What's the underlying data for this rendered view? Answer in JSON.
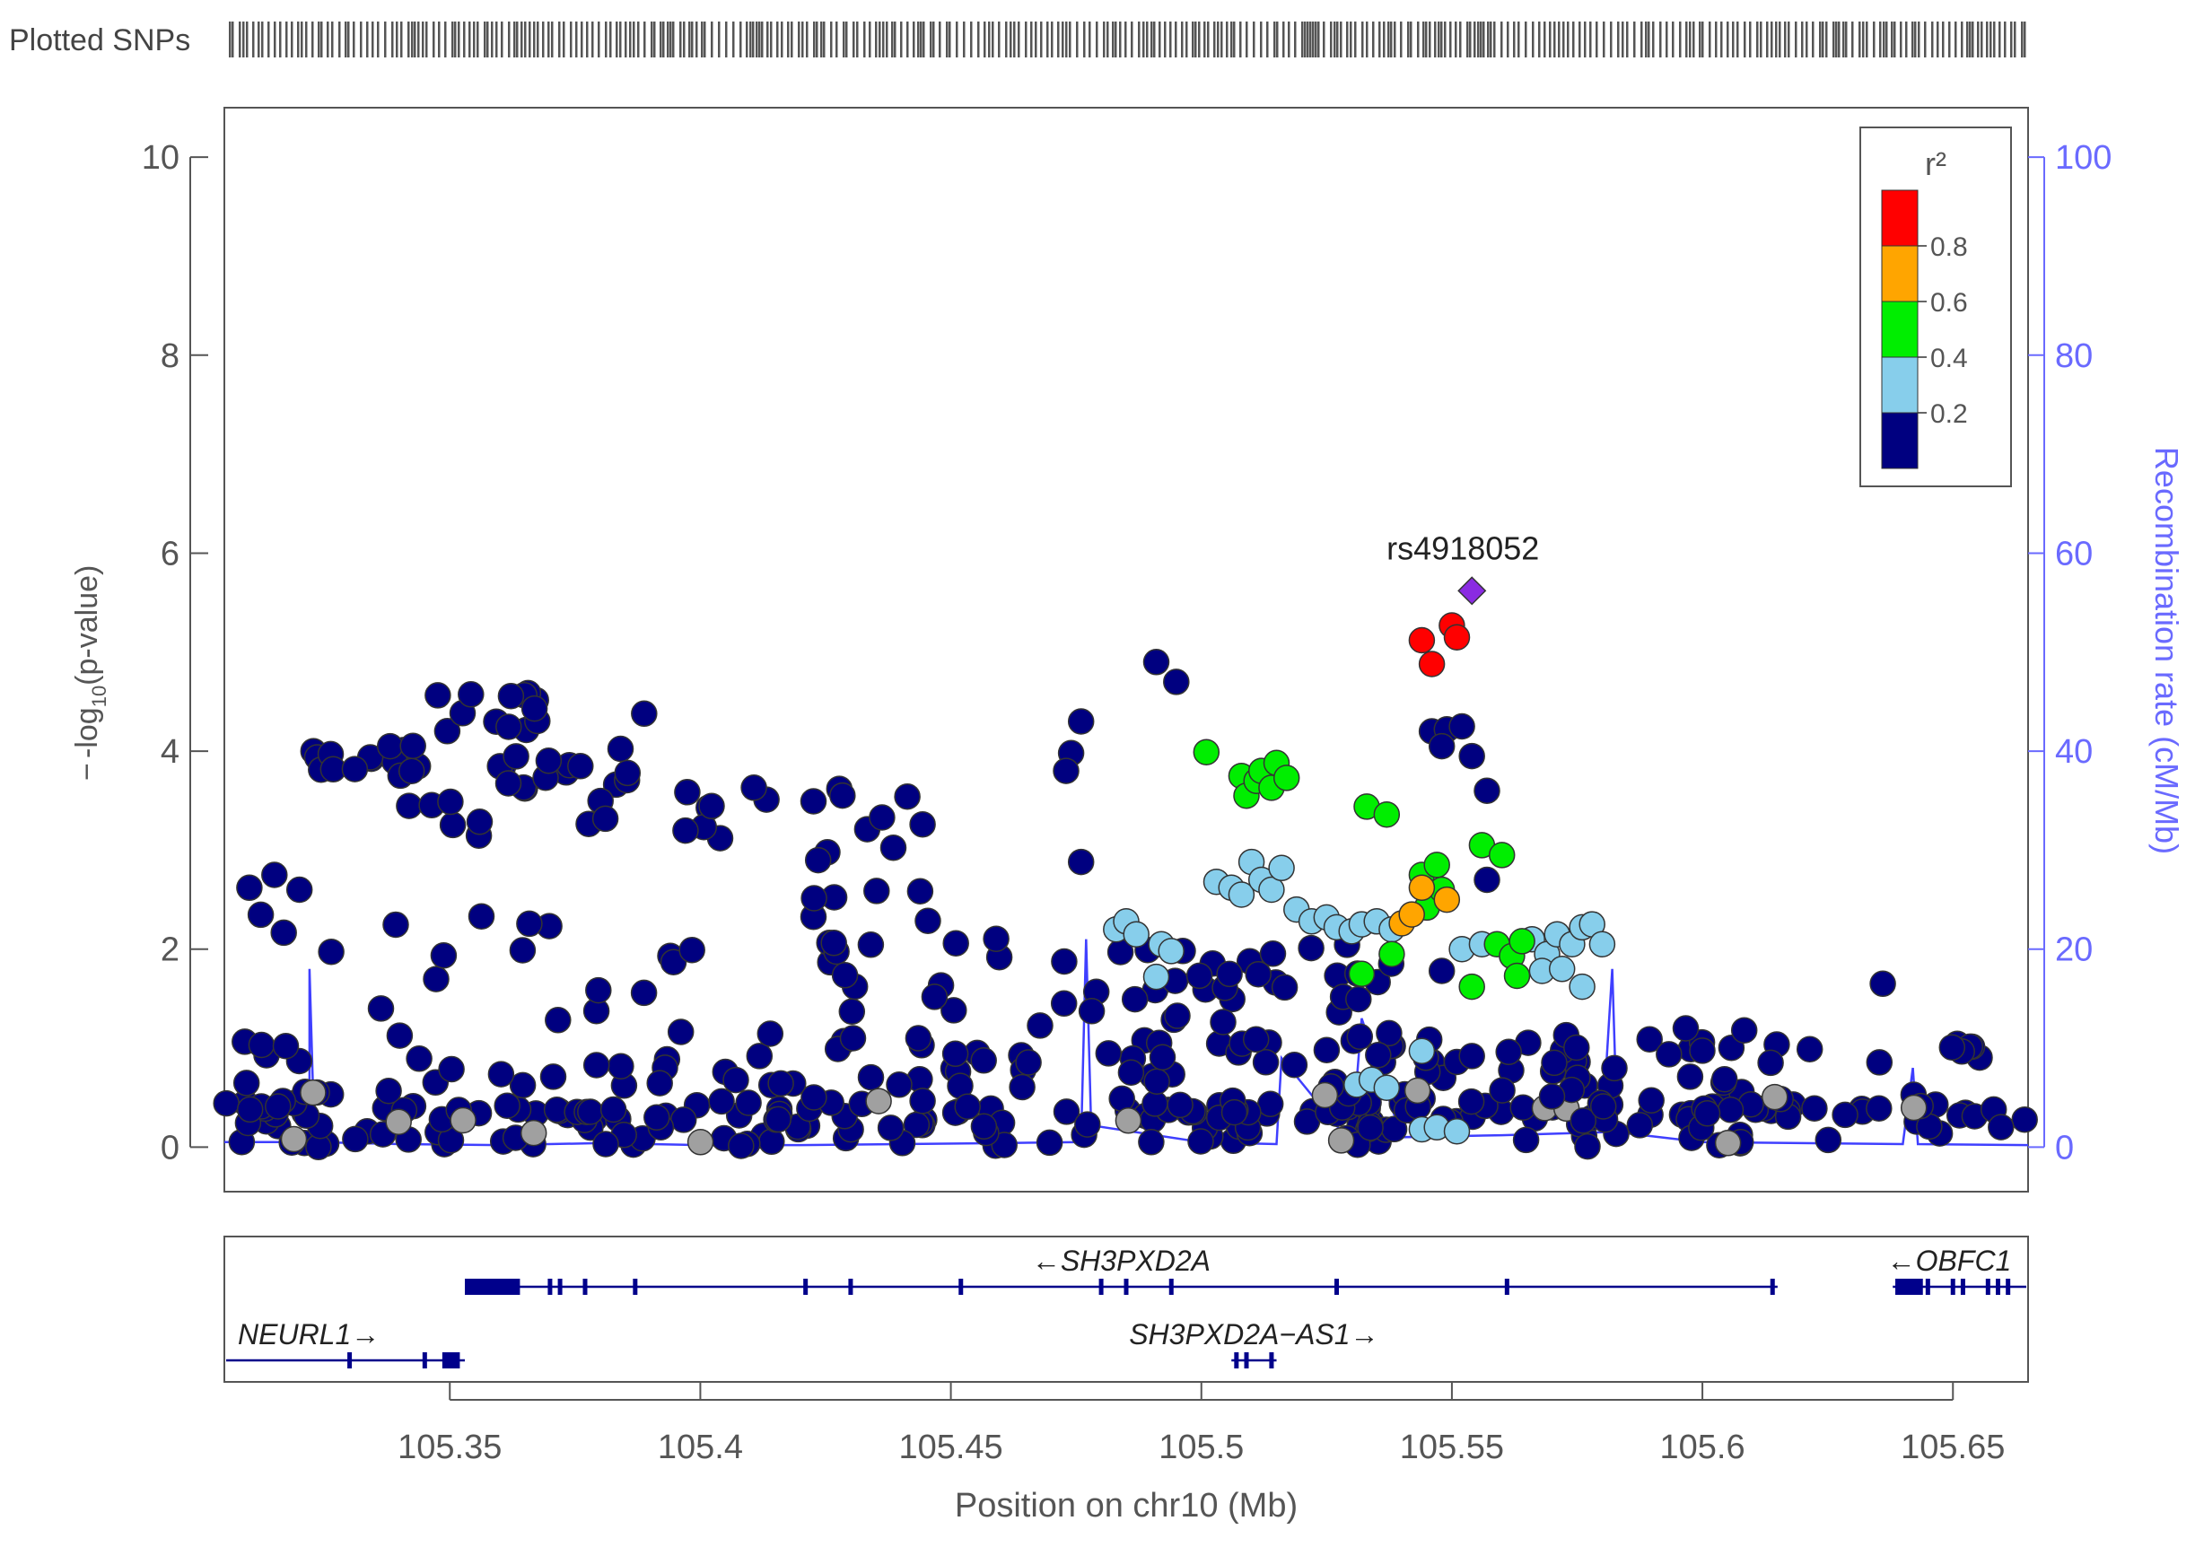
{
  "chart_data": {
    "type": "scatter",
    "plotted_snps_label": "Plotted SNPs",
    "xlabel": "Position on chr10 (Mb)",
    "ylabel_prefix": "-log",
    "ylabel_sub": "10",
    "ylabel_suffix": "(p-value)",
    "y2label": "Recombination rate (cM/Mb)",
    "xlim": [
      105.305,
      105.665
    ],
    "ylim": [
      -0.45,
      10.5
    ],
    "xticks": [
      105.35,
      105.4,
      105.45,
      105.5,
      105.55,
      105.6,
      105.65
    ],
    "xtick_labels": [
      "105.35",
      "105.4",
      "105.45",
      "105.5",
      "105.55",
      "105.6",
      "105.65"
    ],
    "yticks": [
      0,
      2,
      4,
      6,
      8,
      10
    ],
    "y2ticks": [
      0,
      20,
      40,
      60,
      80,
      100
    ],
    "colors": {
      "r2_0.8_1.0": "#ff0000",
      "r2_0.6_0.8": "#ffa500",
      "r2_0.4_0.6": "#00ee00",
      "r2_0.2_0.4": "#87ceeb",
      "r2_0.0_0.2": "#000080",
      "no_r2": "#a0a0a0",
      "lead": "#8a2be2",
      "recombination": "#3f3fff",
      "gene": "#00008b"
    },
    "legend": {
      "title": "r²",
      "position": "top-right",
      "bins": [
        0,
        0.2,
        0.4,
        0.6,
        0.8,
        1.0
      ],
      "tick_labels": [
        "0.2",
        "0.4",
        "0.6",
        "0.8"
      ]
    },
    "lead_snp": {
      "name": "rs4918052",
      "x": 105.554,
      "y": 5.62
    },
    "highlight_points": [
      {
        "x": 105.544,
        "y": 5.12,
        "r2": 0.9
      },
      {
        "x": 105.546,
        "y": 4.88,
        "r2": 0.9
      },
      {
        "x": 105.55,
        "y": 5.27,
        "r2": 0.9
      },
      {
        "x": 105.551,
        "y": 5.15,
        "r2": 0.9
      },
      {
        "x": 105.54,
        "y": 2.26,
        "r2": 0.7
      },
      {
        "x": 105.544,
        "y": 2.62,
        "r2": 0.7
      },
      {
        "x": 105.549,
        "y": 2.5,
        "r2": 0.7
      },
      {
        "x": 105.542,
        "y": 2.35,
        "r2": 0.7
      },
      {
        "x": 105.501,
        "y": 3.99,
        "r2": 0.5
      },
      {
        "x": 105.508,
        "y": 3.75,
        "r2": 0.5
      },
      {
        "x": 105.509,
        "y": 3.55,
        "r2": 0.5
      },
      {
        "x": 105.511,
        "y": 3.7,
        "r2": 0.5
      },
      {
        "x": 105.512,
        "y": 3.8,
        "r2": 0.5
      },
      {
        "x": 105.514,
        "y": 3.63,
        "r2": 0.5
      },
      {
        "x": 105.515,
        "y": 3.88,
        "r2": 0.5
      },
      {
        "x": 105.517,
        "y": 3.73,
        "r2": 0.5
      },
      {
        "x": 105.533,
        "y": 3.44,
        "r2": 0.5
      },
      {
        "x": 105.537,
        "y": 3.36,
        "r2": 0.5
      },
      {
        "x": 105.532,
        "y": 1.75,
        "r2": 0.5
      },
      {
        "x": 105.538,
        "y": 1.95,
        "r2": 0.5
      },
      {
        "x": 105.544,
        "y": 2.75,
        "r2": 0.5
      },
      {
        "x": 105.547,
        "y": 2.85,
        "r2": 0.5
      },
      {
        "x": 105.545,
        "y": 2.42,
        "r2": 0.5
      },
      {
        "x": 105.548,
        "y": 2.6,
        "r2": 0.5
      },
      {
        "x": 105.556,
        "y": 3.05,
        "r2": 0.5
      },
      {
        "x": 105.56,
        "y": 2.95,
        "r2": 0.5
      },
      {
        "x": 105.559,
        "y": 2.05,
        "r2": 0.5
      },
      {
        "x": 105.562,
        "y": 1.93,
        "r2": 0.5
      },
      {
        "x": 105.564,
        "y": 2.08,
        "r2": 0.5
      },
      {
        "x": 105.563,
        "y": 1.73,
        "r2": 0.5
      },
      {
        "x": 105.554,
        "y": 1.62,
        "r2": 0.5
      },
      {
        "x": 105.483,
        "y": 2.2,
        "r2": 0.3
      },
      {
        "x": 105.485,
        "y": 2.28,
        "r2": 0.3
      },
      {
        "x": 105.487,
        "y": 2.15,
        "r2": 0.3
      },
      {
        "x": 105.492,
        "y": 2.05,
        "r2": 0.3
      },
      {
        "x": 105.494,
        "y": 1.98,
        "r2": 0.3
      },
      {
        "x": 105.491,
        "y": 1.72,
        "r2": 0.3
      },
      {
        "x": 105.503,
        "y": 2.68,
        "r2": 0.3
      },
      {
        "x": 105.506,
        "y": 2.62,
        "r2": 0.3
      },
      {
        "x": 105.508,
        "y": 2.55,
        "r2": 0.3
      },
      {
        "x": 105.51,
        "y": 2.88,
        "r2": 0.3
      },
      {
        "x": 105.512,
        "y": 2.7,
        "r2": 0.3
      },
      {
        "x": 105.514,
        "y": 2.6,
        "r2": 0.3
      },
      {
        "x": 105.516,
        "y": 2.82,
        "r2": 0.3
      },
      {
        "x": 105.519,
        "y": 2.4,
        "r2": 0.3
      },
      {
        "x": 105.522,
        "y": 2.28,
        "r2": 0.3
      },
      {
        "x": 105.525,
        "y": 2.32,
        "r2": 0.3
      },
      {
        "x": 105.527,
        "y": 2.22,
        "r2": 0.3
      },
      {
        "x": 105.53,
        "y": 2.18,
        "r2": 0.3
      },
      {
        "x": 105.532,
        "y": 2.25,
        "r2": 0.3
      },
      {
        "x": 105.535,
        "y": 2.28,
        "r2": 0.3
      },
      {
        "x": 105.538,
        "y": 2.2,
        "r2": 0.3
      },
      {
        "x": 105.552,
        "y": 2.0,
        "r2": 0.3
      },
      {
        "x": 105.556,
        "y": 2.05,
        "r2": 0.3
      },
      {
        "x": 105.566,
        "y": 2.1,
        "r2": 0.3
      },
      {
        "x": 105.569,
        "y": 1.95,
        "r2": 0.3
      },
      {
        "x": 105.571,
        "y": 2.15,
        "r2": 0.3
      },
      {
        "x": 105.574,
        "y": 2.05,
        "r2": 0.3
      },
      {
        "x": 105.576,
        "y": 2.22,
        "r2": 0.3
      },
      {
        "x": 105.578,
        "y": 2.25,
        "r2": 0.3
      },
      {
        "x": 105.58,
        "y": 2.05,
        "r2": 0.3
      },
      {
        "x": 105.576,
        "y": 1.62,
        "r2": 0.3
      },
      {
        "x": 105.568,
        "y": 1.78,
        "r2": 0.3
      },
      {
        "x": 105.572,
        "y": 1.8,
        "r2": 0.3
      },
      {
        "x": 105.531,
        "y": 0.63,
        "r2": 0.3
      },
      {
        "x": 105.534,
        "y": 0.68,
        "r2": 0.3
      },
      {
        "x": 105.537,
        "y": 0.6,
        "r2": 0.3
      },
      {
        "x": 105.544,
        "y": 0.97,
        "r2": 0.3
      },
      {
        "x": 105.544,
        "y": 0.18,
        "r2": 0.3
      },
      {
        "x": 105.547,
        "y": 0.2,
        "r2": 0.3
      },
      {
        "x": 105.551,
        "y": 0.16,
        "r2": 0.3
      },
      {
        "x": 105.49,
        "y": 0.05,
        "r2": 0.05
      },
      {
        "x": 105.495,
        "y": 4.7,
        "r2": 0.05
      },
      {
        "x": 105.491,
        "y": 4.9,
        "r2": 0.05
      },
      {
        "x": 105.476,
        "y": 4.3,
        "r2": 0.05
      },
      {
        "x": 105.474,
        "y": 3.98,
        "r2": 0.05
      },
      {
        "x": 105.473,
        "y": 3.8,
        "r2": 0.05
      },
      {
        "x": 105.476,
        "y": 2.88,
        "r2": 0.05
      },
      {
        "x": 105.546,
        "y": 4.2,
        "r2": 0.05
      },
      {
        "x": 105.549,
        "y": 4.22,
        "r2": 0.05
      },
      {
        "x": 105.552,
        "y": 4.25,
        "r2": 0.05
      },
      {
        "x": 105.548,
        "y": 4.05,
        "r2": 0.05
      },
      {
        "x": 105.554,
        "y": 3.95,
        "r2": 0.05
      },
      {
        "x": 105.557,
        "y": 3.6,
        "r2": 0.05
      },
      {
        "x": 105.557,
        "y": 2.7,
        "r2": 0.05
      },
      {
        "x": 105.548,
        "y": 1.78,
        "r2": 0.05
      },
      {
        "x": 105.554,
        "y": 0.92,
        "r2": 0.05
      },
      {
        "x": 105.636,
        "y": 1.65,
        "r2": 0.05
      },
      {
        "x": 105.31,
        "y": 2.62,
        "r2": 0.05
      },
      {
        "x": 105.315,
        "y": 2.75,
        "r2": 0.05
      },
      {
        "x": 105.32,
        "y": 2.6,
        "r2": 0.05
      }
    ],
    "scatter_clusters": [
      {
        "x_range": [
          105.305,
          105.665
        ],
        "y_range": [
          0,
          0.45
        ],
        "r2": 0.05,
        "count": 170
      },
      {
        "x_range": [
          105.305,
          105.665
        ],
        "y_range": [
          0.35,
          1.1
        ],
        "r2": 0.05,
        "count": 130
      },
      {
        "x_range": [
          105.305,
          105.665
        ],
        "y_range": [
          0,
          0.6
        ],
        "r2": "none",
        "count": 16
      },
      {
        "x_range": [
          105.31,
          105.475
        ],
        "y_range": [
          1.1,
          2.4
        ],
        "r2": 0.05,
        "count": 42
      },
      {
        "x_range": [
          105.322,
          105.345
        ],
        "y_range": [
          3.8,
          4.1
        ],
        "r2": 0.05,
        "count": 14
      },
      {
        "x_range": [
          105.34,
          105.39
        ],
        "y_range": [
          3.1,
          4.6
        ],
        "r2": 0.05,
        "count": 40
      },
      {
        "x_range": [
          105.39,
          105.445
        ],
        "y_range": [
          2.5,
          3.75
        ],
        "r2": 0.05,
        "count": 22
      },
      {
        "x_range": [
          105.478,
          105.54
        ],
        "y_range": [
          0.9,
          2.1
        ],
        "r2": 0.05,
        "count": 40
      },
      {
        "x_range": [
          105.56,
          105.61
        ],
        "y_range": [
          0.25,
          1.2
        ],
        "r2": 0.05,
        "count": 26
      }
    ],
    "recombination_rate": {
      "x": [
        105.305,
        105.322,
        105.322,
        105.323,
        105.34,
        105.36,
        105.38,
        105.4,
        105.42,
        105.44,
        105.46,
        105.476,
        105.477,
        105.478,
        105.5,
        105.515,
        105.516,
        105.53,
        105.532,
        105.54,
        105.56,
        105.58,
        105.582,
        105.583,
        105.6,
        105.64,
        105.642,
        105.643,
        105.665
      ],
      "y": [
        0.5,
        0.5,
        18,
        0.5,
        0.3,
        0.2,
        0.4,
        0.2,
        0.2,
        0.3,
        0.4,
        0.5,
        21,
        2.2,
        0.5,
        0.3,
        9,
        0.3,
        13,
        1,
        1.2,
        1.5,
        18,
        1.5,
        0.5,
        0.3,
        8,
        0.3,
        0.2
      ]
    },
    "genes": [
      {
        "name": "SH3PXD2A",
        "label": "←SH3PXD2A",
        "start": 105.353,
        "end": 105.615,
        "row": 1,
        "exons": [
          105.354,
          105.356,
          105.358,
          105.36,
          105.362,
          105.37,
          105.372,
          105.377,
          105.387,
          105.421,
          105.43,
          105.452,
          105.48,
          105.485,
          105.494,
          105.527,
          105.561,
          105.614
        ]
      },
      {
        "name": "OBFC1",
        "label": "←OBFC1",
        "start": 105.638,
        "end": 105.665,
        "row": 1,
        "exons": [
          105.639,
          105.641,
          105.643,
          105.645,
          105.65,
          105.652,
          105.657,
          105.659,
          105.661
        ]
      },
      {
        "name": "NEURL1",
        "label": "NEURL1→",
        "start": 105.305,
        "end": 105.353,
        "row": 2,
        "exons": [
          105.33,
          105.345,
          105.349,
          105.351
        ]
      },
      {
        "name": "SH3PXD2A-AS1",
        "label": "SH3PXD2A−AS1→",
        "start": 105.506,
        "end": 105.515,
        "row": 2,
        "exons": [
          105.507,
          105.509,
          105.514
        ]
      }
    ]
  }
}
